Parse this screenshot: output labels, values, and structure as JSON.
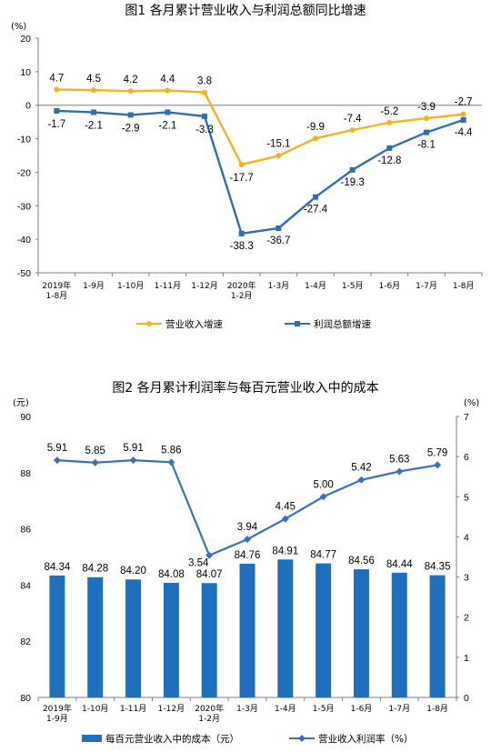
{
  "chart_data": [
    {
      "type": "line",
      "title": "图1  各月累计营业收入与利润总额同比增速",
      "yunit": "(%)",
      "ylim": [
        -50,
        20
      ],
      "yticks": [
        "20",
        "10",
        "0",
        "-10",
        "-20",
        "-30",
        "-40",
        "-50"
      ],
      "categories": [
        "2019年\n1-8月",
        "1-9月",
        "1-10月",
        "1-11月",
        "1-12月",
        "2020年\n1-2月",
        "1-3月",
        "1-4月",
        "1-5月",
        "1-6月",
        "1-7月",
        "1-8月"
      ],
      "series": [
        {
          "name": "营业收入增速",
          "color": "#f5b21c",
          "values": [
            4.7,
            4.5,
            4.2,
            4.4,
            3.8,
            -17.7,
            -15.1,
            -9.9,
            -7.4,
            -5.2,
            -3.9,
            -2.7
          ],
          "labels": [
            "4.7",
            "4.5",
            "4.2",
            "4.4",
            "3.8",
            "-17.7",
            "-15.1",
            "-9.9",
            "-7.4",
            "-5.2",
            "-3.9",
            "-2.7"
          ]
        },
        {
          "name": "利润总额增速",
          "color": "#2f6db5",
          "values": [
            -1.7,
            -2.1,
            -2.9,
            -2.1,
            -3.3,
            -38.3,
            -36.7,
            -27.4,
            -19.3,
            -12.8,
            -8.1,
            -4.4
          ],
          "labels": [
            "-1.7",
            "-2.1",
            "-2.9",
            "-2.1",
            "-3.3",
            "-38.3",
            "-36.7",
            "-27.4",
            "-19.3",
            "-12.8",
            "-8.1",
            "-4.4"
          ]
        }
      ],
      "legend_position": "bottom"
    },
    {
      "type": "bar+line",
      "title": "图2  各月累计利润率与每百元营业收入中的成本",
      "yunit_left": "(元)",
      "yunit_right": "(%)",
      "ylim_left": [
        80,
        90
      ],
      "ylim_right": [
        0,
        7
      ],
      "yticks_left": [
        "90",
        "88",
        "86",
        "84",
        "82",
        "80"
      ],
      "yticks_right": [
        "7",
        "6",
        "5",
        "4",
        "3",
        "2",
        "1",
        "0"
      ],
      "categories": [
        "2019年\n1-9月",
        "1-10月",
        "1-11月",
        "1-12月",
        "2020年\n1-2月",
        "1-3月",
        "1-4月",
        "1-5月",
        "1-6月",
        "1-7月",
        "1-8月"
      ],
      "bars": {
        "name": "每百元营业收入中的成本（元）",
        "color": "#1f6fbf",
        "values": [
          84.34,
          84.28,
          84.2,
          84.08,
          84.07,
          84.76,
          84.91,
          84.77,
          84.56,
          84.44,
          84.35
        ],
        "labels": [
          "84.34",
          "84.28",
          "84.20",
          "84.08",
          "84.07",
          "84.76",
          "84.91",
          "84.77",
          "84.56",
          "84.44",
          "84.35"
        ]
      },
      "line": {
        "name": "营业收入利润率（%）",
        "color": "#3571bf",
        "values": [
          5.91,
          5.85,
          5.91,
          5.86,
          3.54,
          3.94,
          4.45,
          5.0,
          5.42,
          5.63,
          5.79
        ],
        "labels": [
          "5.91",
          "5.85",
          "5.91",
          "5.86",
          "3.54",
          "3.94",
          "4.45",
          "5.00",
          "5.42",
          "5.63",
          "5.79"
        ]
      },
      "legend_position": "bottom"
    }
  ]
}
